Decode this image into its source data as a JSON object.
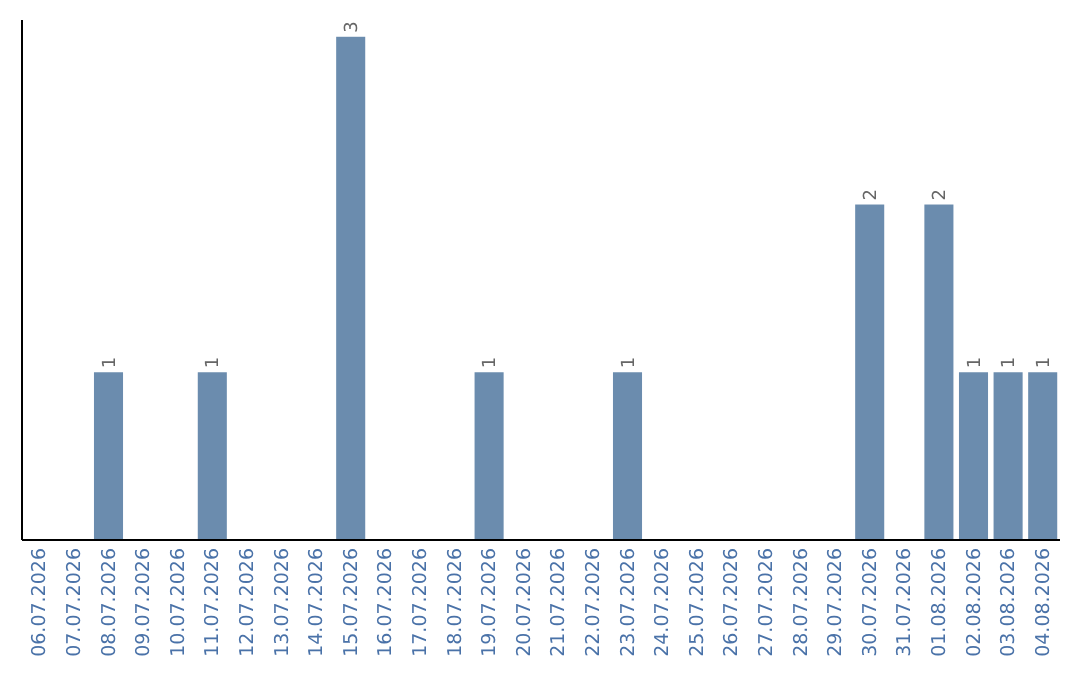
{
  "chart_data": {
    "type": "bar",
    "categories": [
      "06.07.2026",
      "07.07.2026",
      "08.07.2026",
      "09.07.2026",
      "10.07.2026",
      "11.07.2026",
      "12.07.2026",
      "13.07.2026",
      "14.07.2026",
      "15.07.2026",
      "16.07.2026",
      "17.07.2026",
      "18.07.2026",
      "19.07.2026",
      "20.07.2026",
      "21.07.2026",
      "22.07.2026",
      "23.07.2026",
      "24.07.2026",
      "25.07.2026",
      "26.07.2026",
      "27.07.2026",
      "28.07.2026",
      "29.07.2026",
      "30.07.2026",
      "31.07.2026",
      "01.08.2026",
      "02.08.2026",
      "03.08.2026",
      "04.08.2026"
    ],
    "values": [
      null,
      null,
      1,
      null,
      null,
      1,
      null,
      null,
      null,
      3,
      null,
      null,
      null,
      1,
      null,
      null,
      null,
      1,
      null,
      null,
      null,
      null,
      null,
      null,
      2,
      null,
      2,
      1,
      1,
      1
    ],
    "color": "#6b8cae",
    "ylim": [
      0,
      3.1
    ],
    "data_labels": true,
    "tick_labels": "x"
  }
}
